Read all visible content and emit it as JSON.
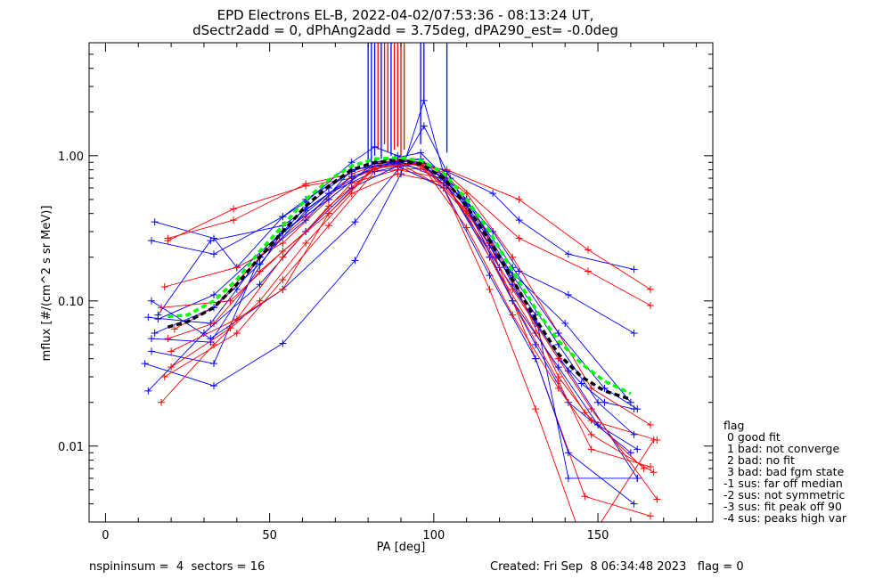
{
  "chart_data": {
    "type": "line",
    "title": "EPD Electrons EL-B, 2022-04-02/07:53:36 - 08:13:24 UT,",
    "subtitle": "dSectr2add = 0, dPhAng2add = 3.75deg, dPA290_est=  -0.0deg",
    "xlabel": "PA [deg]",
    "ylabel": "mflux [#/(cm^2 s sr MeV)]",
    "xlim": [
      -5,
      185
    ],
    "ylim": [
      0.003,
      6
    ],
    "yscale": "log",
    "x_ticks": [
      "0",
      "50",
      "100",
      "150"
    ],
    "y_ticks": [
      "0.01",
      "0.10",
      "1.00"
    ],
    "legend_title": "flag",
    "legend_items": [
      " 0 good fit",
      " 1 bad: not converge",
      " 2 bad: no fit",
      " 3 bad: bad fgm state",
      "-1 sus: far off median",
      "-2 sus: not symmetric",
      "-3 sus: fit peak off 90",
      "-4 sus: peaks high var"
    ],
    "footer_left": "nspininsum =  4  sectors = 16",
    "footer_right": "Created: Fri Sep  8 06:34:48 2023   flag = 0",
    "colors": {
      "series_a": "#0000ff",
      "series_b": "#ff0000",
      "median": "#000000",
      "fit": "#00ff00"
    },
    "median_curve": {
      "x": [
        19,
        25,
        33,
        40,
        47,
        54,
        61,
        68,
        75,
        82,
        89,
        96,
        103,
        110,
        117,
        124,
        131,
        138,
        145,
        152,
        160
      ],
      "y": [
        0.066,
        0.072,
        0.09,
        0.13,
        0.2,
        0.3,
        0.45,
        0.62,
        0.8,
        0.9,
        0.93,
        0.88,
        0.7,
        0.45,
        0.26,
        0.14,
        0.075,
        0.043,
        0.03,
        0.024,
        0.021
      ]
    },
    "fit_curve": {
      "x": [
        19,
        25,
        33,
        40,
        47,
        54,
        61,
        68,
        75,
        82,
        89,
        96,
        103,
        110,
        117,
        124,
        131,
        138,
        145,
        152,
        160
      ],
      "y": [
        0.078,
        0.08,
        0.1,
        0.14,
        0.22,
        0.33,
        0.5,
        0.68,
        0.85,
        0.95,
        0.97,
        0.93,
        0.76,
        0.5,
        0.3,
        0.16,
        0.088,
        0.053,
        0.037,
        0.028,
        0.023
      ]
    },
    "series": [
      {
        "color": "#0000ff",
        "x": [
          15,
          33,
          40,
          54,
          61,
          75,
          82,
          89,
          96,
          104,
          118,
          126,
          141,
          161
        ],
        "y": [
          0.35,
          0.27,
          0.17,
          0.38,
          0.5,
          0.78,
          0.88,
          0.92,
          0.9,
          0.78,
          0.55,
          0.36,
          0.21,
          0.165
        ]
      },
      {
        "color": "#0000ff",
        "x": [
          14,
          33,
          54,
          61,
          75,
          82,
          89,
          96,
          104,
          118,
          126,
          141,
          161
        ],
        "y": [
          0.26,
          0.21,
          0.38,
          0.48,
          0.9,
          1.15,
          1.0,
          0.85,
          0.7,
          0.3,
          0.16,
          0.11,
          0.06
        ]
      },
      {
        "color": "#ff0000",
        "x": [
          19,
          39,
          61,
          75,
          82,
          89,
          96,
          104,
          126,
          147,
          166
        ],
        "y": [
          0.26,
          0.43,
          0.62,
          0.7,
          0.8,
          0.9,
          0.85,
          0.8,
          0.5,
          0.225,
          0.12
        ]
      },
      {
        "color": "#ff0000",
        "x": [
          19,
          39,
          61,
          75,
          82,
          89,
          96,
          104,
          126,
          147,
          166
        ],
        "y": [
          0.27,
          0.36,
          0.64,
          0.75,
          0.85,
          0.95,
          0.9,
          0.75,
          0.27,
          0.16,
          0.093
        ]
      },
      {
        "color": "#0000ff",
        "x": [
          13,
          32,
          40,
          47,
          54,
          61,
          68,
          75,
          82,
          89,
          96,
          103,
          110,
          117,
          124,
          131,
          138,
          145,
          152,
          161
        ],
        "y": [
          0.077,
          0.07,
          0.12,
          0.2,
          0.3,
          0.44,
          0.6,
          0.78,
          0.88,
          0.9,
          0.86,
          0.7,
          0.46,
          0.26,
          0.13,
          0.07,
          0.04,
          0.027,
          0.02,
          0.018
        ]
      },
      {
        "color": "#0000ff",
        "x": [
          12,
          33,
          54,
          76,
          90,
          97,
          104,
          120,
          141,
          162
        ],
        "y": [
          0.037,
          0.026,
          0.051,
          0.19,
          0.75,
          2.4,
          0.62,
          0.17,
          0.033,
          0.006
        ]
      },
      {
        "color": "#0000ff",
        "x": [
          14,
          32,
          54,
          76,
          90,
          97,
          105,
          119,
          140,
          160
        ],
        "y": [
          0.1,
          0.055,
          0.12,
          0.35,
          0.85,
          1.6,
          0.7,
          0.2,
          0.07,
          0.02
        ]
      },
      {
        "color": "#ff0000",
        "x": [
          17,
          33,
          47,
          61,
          75,
          89,
          103,
          117,
          131,
          146,
          166
        ],
        "y": [
          0.02,
          0.05,
          0.1,
          0.25,
          0.55,
          0.75,
          0.65,
          0.25,
          0.04,
          0.0045,
          0.0033
        ]
      },
      {
        "color": "#ff0000",
        "x": [
          19,
          33,
          47,
          61,
          75,
          89,
          103,
          117,
          131,
          146,
          164
        ],
        "y": [
          0.055,
          0.07,
          0.16,
          0.3,
          0.65,
          0.8,
          0.7,
          0.2,
          0.06,
          0.017,
          0.007
        ]
      },
      {
        "color": "#ff0000",
        "x": [
          21,
          33,
          47,
          61,
          75,
          89,
          103,
          117,
          131,
          146,
          167
        ],
        "y": [
          0.064,
          0.09,
          0.2,
          0.38,
          0.72,
          0.9,
          0.6,
          0.12,
          0.018,
          0.002,
          0.011
        ]
      },
      {
        "color": "#0000ff",
        "x": [
          13,
          30,
          47,
          61,
          75,
          89,
          103,
          117,
          131,
          141,
          161
        ],
        "y": [
          0.024,
          0.06,
          0.13,
          0.3,
          0.6,
          0.85,
          0.6,
          0.15,
          0.04,
          0.009,
          0.004
        ]
      },
      {
        "color": "#0000ff",
        "x": [
          15,
          33,
          47,
          61,
          75,
          89,
          103,
          117,
          131,
          141,
          160
        ],
        "y": [
          0.06,
          0.09,
          0.18,
          0.42,
          0.72,
          0.92,
          0.68,
          0.2,
          0.05,
          0.02,
          0.009
        ]
      },
      {
        "color": "#0000ff",
        "x": [
          14,
          33,
          47,
          61,
          75,
          89,
          103,
          117,
          131,
          141,
          162
        ],
        "y": [
          0.045,
          0.037,
          0.2,
          0.36,
          0.8,
          0.88,
          0.75,
          0.24,
          0.08,
          0.006,
          0.006
        ]
      },
      {
        "color": "#ff0000",
        "x": [
          18,
          40,
          54,
          68,
          82,
          96,
          110,
          124,
          138,
          148,
          168
        ],
        "y": [
          0.03,
          0.06,
          0.14,
          0.33,
          0.78,
          0.82,
          0.5,
          0.14,
          0.03,
          0.015,
          0.011
        ]
      },
      {
        "color": "#ff0000",
        "x": [
          20,
          40,
          54,
          68,
          82,
          96,
          110,
          124,
          138,
          148,
          166
        ],
        "y": [
          0.045,
          0.075,
          0.12,
          0.4,
          0.85,
          0.88,
          0.4,
          0.1,
          0.028,
          0.0095,
          0.0072
        ]
      },
      {
        "color": "#ff0000",
        "x": [
          18,
          40,
          54,
          68,
          82,
          96,
          110,
          124,
          138,
          148,
          166
        ],
        "y": [
          0.125,
          0.17,
          0.25,
          0.5,
          0.9,
          0.95,
          0.55,
          0.2,
          0.06,
          0.025,
          0.014
        ]
      },
      {
        "color": "#0000ff",
        "x": [
          16,
          33,
          54,
          68,
          82,
          96,
          110,
          124,
          138,
          150,
          161
        ],
        "y": [
          0.075,
          0.11,
          0.3,
          0.5,
          0.9,
          1.05,
          0.5,
          0.15,
          0.05,
          0.02,
          0.012
        ]
      },
      {
        "color": "#0000ff",
        "x": [
          14,
          32,
          53,
          68,
          82,
          96,
          110,
          124,
          138,
          150,
          162
        ],
        "y": [
          0.055,
          0.052,
          0.28,
          0.55,
          0.78,
          0.9,
          0.45,
          0.1,
          0.035,
          0.014,
          0.0095
        ]
      },
      {
        "color": "#ff0000",
        "x": [
          20,
          38,
          54,
          68,
          82,
          96,
          110,
          124,
          138,
          148,
          167
        ],
        "y": [
          0.035,
          0.065,
          0.2,
          0.45,
          0.82,
          0.88,
          0.32,
          0.08,
          0.025,
          0.012,
          0.0066
        ]
      },
      {
        "color": "#0000ff",
        "x": [
          16,
          32,
          54,
          68,
          82,
          96,
          110,
          124,
          138,
          152,
          162
        ],
        "y": [
          0.08,
          0.26,
          0.33,
          0.55,
          0.85,
          0.95,
          0.48,
          0.17,
          0.06,
          0.025,
          0.018
        ]
      },
      {
        "color": "#ff0000",
        "x": [
          17,
          38,
          54,
          68,
          82,
          96,
          110,
          124,
          138,
          148,
          168
        ],
        "y": [
          0.09,
          0.1,
          0.22,
          0.4,
          0.82,
          0.9,
          0.42,
          0.12,
          0.04,
          0.018,
          0.0043
        ]
      }
    ],
    "spikes": [
      {
        "color": "#0000ff",
        "x": 80,
        "y_from": 0.82
      },
      {
        "color": "#0000ff",
        "x": 81,
        "y_from": 0.9
      },
      {
        "color": "#0000ff",
        "x": 82,
        "y_from": 1.0
      },
      {
        "color": "#ff0000",
        "x": 83,
        "y_from": 1.1
      },
      {
        "color": "#0000ff",
        "x": 84,
        "y_from": 0.95
      },
      {
        "color": "#ff0000",
        "x": 85,
        "y_from": 1.2
      },
      {
        "color": "#ff0000",
        "x": 86,
        "y_from": 1.05
      },
      {
        "color": "#0000ff",
        "x": 87,
        "y_from": 1.0
      },
      {
        "color": "#ff0000",
        "x": 88,
        "y_from": 1.1
      },
      {
        "color": "#ff0000",
        "x": 89,
        "y_from": 1.15
      },
      {
        "color": "#ff0000",
        "x": 90,
        "y_from": 1.0
      },
      {
        "color": "#ff0000",
        "x": 91,
        "y_from": 1.1
      },
      {
        "color": "#0000ff",
        "x": 96,
        "y_from": 1.2
      },
      {
        "color": "#0000ff",
        "x": 97,
        "y_from": 2.4
      },
      {
        "color": "#0000ff",
        "x": 104,
        "y_from": 1.05
      }
    ]
  }
}
